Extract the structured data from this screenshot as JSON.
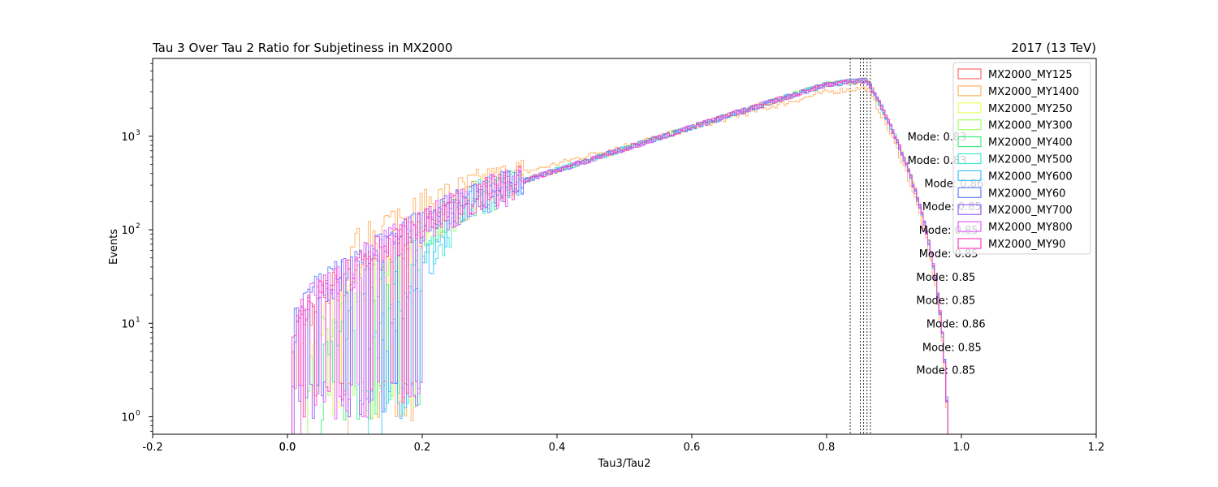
{
  "chart_data": {
    "type": "line",
    "style": "step-histogram",
    "title": "Tau 3 Over Tau 2 Ratio for Subjetiness in MX2000",
    "right_title": "2017 (13 TeV)",
    "xlabel": "Tau3/Tau2",
    "ylabel": "Events",
    "xlim": [
      -0.2,
      1.2
    ],
    "ylim": [
      0.65,
      6800
    ],
    "yscale": "log",
    "x_ticks": [
      "-0.2",
      "0.0",
      "0.2",
      "0.4",
      "0.6",
      "0.8",
      "1.0",
      "1.2"
    ],
    "x_tick_values": [
      -0.2,
      0.0,
      0.2,
      0.4,
      0.6,
      0.8,
      1.0,
      1.2
    ],
    "y_tick_exponents": [
      0,
      1,
      2,
      3
    ],
    "extra_zero_ticks": [
      {
        "x": 0.0,
        "label": "0.0"
      },
      {
        "x": 0.0,
        "label": "0.0"
      }
    ],
    "grid": false,
    "legend_position": "top-right",
    "series": [
      {
        "name": "MX2000_MY125",
        "color": "#ff6b6b",
        "start": 0.005,
        "low": 7,
        "mode": 0.86
      },
      {
        "name": "MX2000_MY1400",
        "color": "#ffb060",
        "start": 0.09,
        "low": 55,
        "mode": 0.85
      },
      {
        "name": "MX2000_MY250",
        "color": "#eaff60",
        "start": 0.02,
        "low": 5,
        "mode": 0.85
      },
      {
        "name": "MX2000_MY300",
        "color": "#a0ff60",
        "start": 0.03,
        "low": 4,
        "mode": 0.85
      },
      {
        "name": "MX2000_MY400",
        "color": "#40f080",
        "start": 0.05,
        "low": 3,
        "mode": 0.86
      },
      {
        "name": "MX2000_MY500",
        "color": "#40e8d8",
        "start": 0.12,
        "low": 3,
        "mode": 0.86
      },
      {
        "name": "MX2000_MY600",
        "color": "#40c0ff",
        "start": 0.14,
        "low": 4,
        "mode": 0.86
      },
      {
        "name": "MX2000_MY60",
        "color": "#6080ff",
        "start": 0.005,
        "low": 10,
        "mode": 0.86
      },
      {
        "name": "MX2000_MY700",
        "color": "#9060ff",
        "start": 0.01,
        "low": 9,
        "mode": 0.86
      },
      {
        "name": "MX2000_MY800",
        "color": "#e060ff",
        "start": 0.02,
        "low": 12,
        "mode": 0.86
      },
      {
        "name": "MX2000_MY90",
        "color": "#ff40c0",
        "start": 0.005,
        "low": 8,
        "mode": 0.86
      }
    ],
    "mode_lines": [
      0.835,
      0.85,
      0.855,
      0.86,
      0.865
    ],
    "annotations": [
      {
        "text": "Mode: 0.83",
        "x": 0.92,
        "y": 1000
      },
      {
        "text": "Mode: 0.83",
        "x": 0.92,
        "y": 560
      },
      {
        "text": "Mode: 0.86",
        "x": 0.945,
        "y": 315
      },
      {
        "text": "Mode: 0.85",
        "x": 0.942,
        "y": 178
      },
      {
        "text": "Mode: 0.85",
        "x": 0.937,
        "y": 100
      },
      {
        "text": "Mode: 0.85",
        "x": 0.937,
        "y": 56
      },
      {
        "text": "Mode: 0.85",
        "x": 0.933,
        "y": 31.5
      },
      {
        "text": "Mode: 0.85",
        "x": 0.933,
        "y": 17.8
      },
      {
        "text": "Mode: 0.86",
        "x": 0.948,
        "y": 10
      },
      {
        "text": "Mode: 0.85",
        "x": 0.942,
        "y": 5.6
      },
      {
        "text": "Mode: 0.85",
        "x": 0.933,
        "y": 3.2
      }
    ]
  }
}
